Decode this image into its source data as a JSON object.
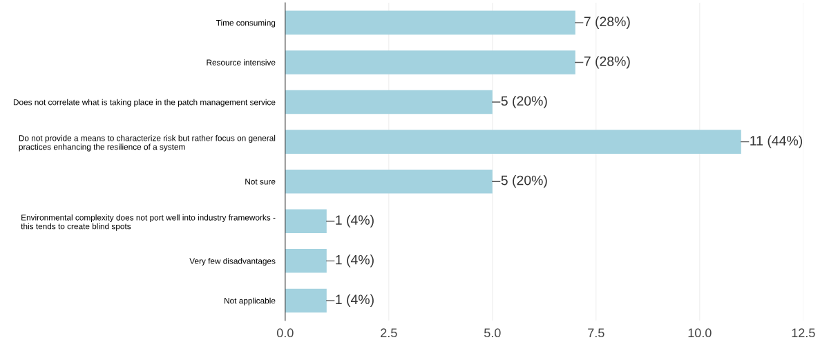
{
  "chart_data": {
    "type": "bar",
    "orientation": "horizontal",
    "categories": [
      "Time consuming",
      "Resource intensive",
      "Does not correlate what is taking place in the patch management service",
      "Do not provide a means to characterize risk but rather focus on general\npractices enhancing the resilience of a system",
      "Not sure",
      "Environmental complexity does not port well into industry frameworks -\nthis tends to create blind spots",
      "Very few disadvantages",
      "Not applicable"
    ],
    "values": [
      7,
      7,
      5,
      11,
      5,
      1,
      1,
      1
    ],
    "value_labels": [
      "7 (28%)",
      "7 (28%)",
      "5 (20%)",
      "11 (44%)",
      "5 (20%)",
      "1 (4%)",
      "1 (4%)",
      "1 (4%)"
    ],
    "color": "#a3d2df",
    "xlim": [
      0,
      12.5
    ],
    "xticks": [
      {
        "value": 0,
        "label": "0.0"
      },
      {
        "value": 2.5,
        "label": "2.5"
      },
      {
        "value": 5,
        "label": "5.0"
      },
      {
        "value": 7.5,
        "label": "7.5"
      },
      {
        "value": 10,
        "label": "10.0"
      },
      {
        "value": 12.5,
        "label": "12.5"
      }
    ],
    "grid": "x"
  }
}
